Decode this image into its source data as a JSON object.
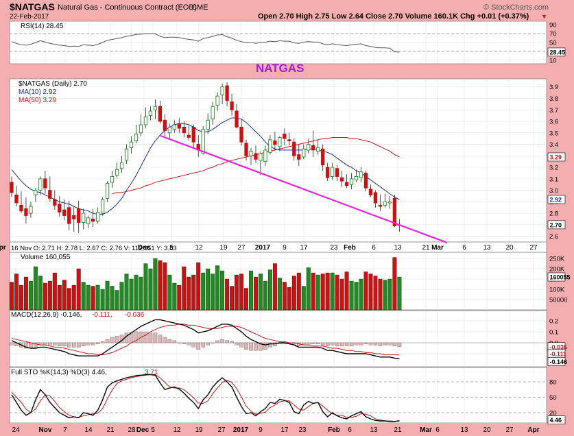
{
  "header": {
    "symbol": "$NATGAS",
    "description": "Natural Gas - Continuous Contract (EOD)",
    "exchange": "CME",
    "date": "22-Feb-2017",
    "quote": "Open 2.70  High 2.75  Low 2.64  Close 2.70  Volume 160.1K  Chg +0.01 (+0.37%)",
    "quote_arrow": "▼",
    "watermark": "© StockCharts.com",
    "annotation": "NATGAS"
  },
  "colors": {
    "up": "#1e8c1e",
    "down": "#cc1111",
    "ma10": "#1a2aa0",
    "ma50": "#c01818",
    "trendline": "#ee1ee0",
    "annotation": "#9d1fd6",
    "panel_bg": "#ffffff",
    "frame_bg": "#f4aeb0"
  },
  "info_row": "16 Nov O: 2.71  H: 2.78  L: 2.67  C: 2.76  V: 119,951  Y: 3.83",
  "x_axis": {
    "mid_labels": [
      "Dec",
      "5",
      "12",
      "19",
      "27",
      "2017",
      "9",
      "17",
      "23",
      "Feb",
      "6",
      "13",
      "21",
      "Mar",
      "6",
      "13",
      "20",
      "27",
      "Apr"
    ],
    "bottom_labels": [
      "24",
      "Nov",
      "7",
      "14",
      "21",
      "28",
      "Dec",
      "5",
      "12",
      "19",
      "27",
      "2017",
      "9",
      "17",
      "23",
      "Feb",
      "6",
      "13",
      "21",
      "Mar",
      "6",
      "13",
      "20",
      "27",
      "Apr"
    ]
  },
  "rsi": {
    "legend": "RSI(14) 28.45",
    "current": "28.45",
    "ticks": [
      "90",
      "70",
      "50",
      "30",
      "10"
    ]
  },
  "price_panel": {
    "legend_main": "$NATGAS (Daily) 2.70",
    "legend_ma10": "MA(10) 2.92",
    "legend_ma50": "MA(50) 3.29",
    "ticks": [
      "3.9",
      "3.8",
      "3.7",
      "3.6",
      "3.5",
      "3.4",
      "3.3",
      "3.2",
      "3.1",
      "3.0",
      "2.9",
      "2.8",
      "2.7",
      "2.6"
    ],
    "tag_ma50": "3.29",
    "tag_ma10": "2.92",
    "tag_close": "2.70"
  },
  "volume": {
    "legend": "Volume 160,055",
    "ticks": [
      "250K",
      "200K",
      "150K",
      "100K",
      "50000"
    ],
    "current": "160055"
  },
  "macd": {
    "legend_a": "MACD(12,26,9) -0.146,",
    "legend_b": "-0.111,",
    "legend_c": "-0.036",
    "ticks": [
      "0.2",
      "0.1",
      "0.0",
      "-0.1"
    ],
    "tags": [
      "-0.036",
      "-0.111",
      "-0.146"
    ]
  },
  "sto": {
    "legend_a": "Full STO %K(14,3) %D(3) 4.46,",
    "legend_b": "3.71",
    "ticks": [
      "80",
      "50",
      "20"
    ],
    "current": "4.46"
  },
  "chart_data": {
    "type": "candlestick",
    "title": "$NATGAS (Daily) 2.70",
    "xlabel": "",
    "ylabel": "",
    "ylim": [
      2.55,
      3.97
    ],
    "dates": [
      "2016-10-25",
      "2016-10-26",
      "2016-10-27",
      "2016-10-28",
      "2016-10-31",
      "2016-11-01",
      "2016-11-02",
      "2016-11-03",
      "2016-11-04",
      "2016-11-07",
      "2016-11-08",
      "2016-11-09",
      "2016-11-10",
      "2016-11-11",
      "2016-11-14",
      "2016-11-15",
      "2016-11-16",
      "2016-11-17",
      "2016-11-18",
      "2016-11-21",
      "2016-11-22",
      "2016-11-23",
      "2016-11-25",
      "2016-11-28",
      "2016-11-29",
      "2016-11-30",
      "2016-12-01",
      "2016-12-02",
      "2016-12-05",
      "2016-12-06",
      "2016-12-07",
      "2016-12-08",
      "2016-12-09",
      "2016-12-12",
      "2016-12-13",
      "2016-12-14",
      "2016-12-15",
      "2016-12-16",
      "2016-12-19",
      "2016-12-20",
      "2016-12-21",
      "2016-12-22",
      "2016-12-23",
      "2016-12-27",
      "2016-12-28",
      "2016-12-29",
      "2016-12-30",
      "2017-01-03",
      "2017-01-04",
      "2017-01-05",
      "2017-01-06",
      "2017-01-09",
      "2017-01-10",
      "2017-01-11",
      "2017-01-12",
      "2017-01-13",
      "2017-01-17",
      "2017-01-18",
      "2017-01-19",
      "2017-01-20",
      "2017-01-23",
      "2017-01-24",
      "2017-01-25",
      "2017-01-26",
      "2017-01-27",
      "2017-01-30",
      "2017-01-31",
      "2017-02-01",
      "2017-02-02",
      "2017-02-03",
      "2017-02-06",
      "2017-02-07",
      "2017-02-08",
      "2017-02-09",
      "2017-02-10",
      "2017-02-13",
      "2017-02-14",
      "2017-02-15",
      "2017-02-16",
      "2017-02-17",
      "2017-02-21",
      "2017-02-22"
    ],
    "open": [
      3.07,
      2.96,
      2.87,
      2.84,
      2.8,
      2.96,
      3.0,
      3.1,
      3.0,
      2.92,
      2.88,
      2.83,
      2.85,
      2.78,
      2.84,
      2.72,
      2.71,
      2.75,
      2.73,
      2.8,
      2.93,
      3.07,
      3.13,
      3.19,
      3.26,
      3.37,
      3.43,
      3.5,
      3.57,
      3.65,
      3.7,
      3.73,
      3.61,
      3.5,
      3.53,
      3.58,
      3.55,
      3.48,
      3.55,
      3.4,
      3.32,
      3.53,
      3.62,
      3.74,
      3.83,
      3.91,
      3.77,
      3.69,
      3.55,
      3.41,
      3.3,
      3.32,
      3.26,
      3.25,
      3.33,
      3.43,
      3.38,
      3.49,
      3.44,
      3.42,
      3.31,
      3.29,
      3.35,
      3.39,
      3.34,
      3.36,
      3.2,
      3.12,
      3.19,
      3.11,
      3.07,
      3.05,
      3.09,
      3.11,
      3.15,
      3.01,
      2.98,
      2.87,
      2.87,
      2.89,
      2.93,
      2.7
    ],
    "high": [
      3.12,
      3.04,
      2.99,
      2.94,
      2.9,
      3.02,
      3.12,
      3.17,
      3.12,
      3.0,
      2.95,
      2.92,
      2.91,
      2.86,
      2.91,
      2.84,
      2.78,
      2.84,
      2.85,
      2.94,
      3.08,
      3.17,
      3.24,
      3.3,
      3.4,
      3.47,
      3.57,
      3.66,
      3.72,
      3.73,
      3.79,
      3.78,
      3.66,
      3.58,
      3.61,
      3.63,
      3.6,
      3.56,
      3.57,
      3.48,
      3.56,
      3.67,
      3.77,
      3.85,
      3.93,
      3.94,
      3.84,
      3.75,
      3.62,
      3.44,
      3.37,
      3.39,
      3.34,
      3.39,
      3.48,
      3.51,
      3.47,
      3.54,
      3.5,
      3.45,
      3.4,
      3.4,
      3.45,
      3.52,
      3.44,
      3.4,
      3.24,
      3.24,
      3.22,
      3.17,
      3.14,
      3.15,
      3.18,
      3.2,
      3.17,
      3.05,
      3.0,
      2.96,
      2.97,
      2.95,
      2.96,
      2.75
    ],
    "low": [
      2.94,
      2.86,
      2.8,
      2.71,
      2.76,
      2.9,
      2.96,
      2.97,
      2.9,
      2.83,
      2.77,
      2.74,
      2.65,
      2.64,
      2.63,
      2.66,
      2.67,
      2.68,
      2.71,
      2.78,
      2.9,
      3.02,
      3.11,
      3.15,
      3.23,
      3.32,
      3.41,
      3.47,
      3.54,
      3.61,
      3.62,
      3.58,
      3.47,
      3.44,
      3.5,
      3.5,
      3.46,
      3.43,
      3.37,
      3.29,
      3.31,
      3.49,
      3.57,
      3.69,
      3.75,
      3.73,
      3.65,
      3.54,
      3.39,
      3.26,
      3.22,
      3.24,
      3.13,
      3.21,
      3.31,
      3.35,
      3.34,
      3.39,
      3.39,
      3.26,
      3.21,
      3.27,
      3.32,
      3.29,
      3.31,
      3.17,
      3.08,
      3.09,
      3.08,
      3.03,
      3.02,
      3.01,
      3.07,
      3.07,
      2.99,
      2.94,
      2.85,
      2.82,
      2.85,
      2.84,
      2.68,
      2.64
    ],
    "close": [
      2.98,
      2.89,
      2.82,
      2.78,
      2.86,
      3.0,
      3.1,
      3.02,
      2.93,
      2.87,
      2.81,
      2.78,
      2.71,
      2.75,
      2.72,
      2.8,
      2.76,
      2.73,
      2.81,
      2.92,
      3.06,
      3.12,
      3.18,
      3.24,
      3.36,
      3.42,
      3.49,
      3.57,
      3.64,
      3.69,
      3.73,
      3.6,
      3.52,
      3.55,
      3.57,
      3.54,
      3.5,
      3.46,
      3.42,
      3.35,
      3.53,
      3.61,
      3.73,
      3.82,
      3.9,
      3.78,
      3.7,
      3.55,
      3.42,
      3.3,
      3.34,
      3.27,
      3.32,
      3.35,
      3.44,
      3.4,
      3.46,
      3.45,
      3.43,
      3.3,
      3.27,
      3.36,
      3.4,
      3.35,
      3.37,
      3.22,
      3.11,
      3.2,
      3.12,
      3.08,
      3.04,
      3.1,
      3.12,
      3.16,
      3.02,
      2.96,
      2.89,
      2.86,
      2.9,
      2.9,
      2.69,
      2.7
    ],
    "ma10": [
      3.18,
      3.13,
      3.08,
      3.04,
      3.01,
      2.99,
      2.98,
      2.96,
      2.94,
      2.92,
      2.9,
      2.89,
      2.88,
      2.86,
      2.84,
      2.83,
      2.82,
      2.8,
      2.79,
      2.79,
      2.81,
      2.84,
      2.88,
      2.93,
      3.0,
      3.06,
      3.13,
      3.21,
      3.29,
      3.37,
      3.43,
      3.48,
      3.52,
      3.55,
      3.57,
      3.58,
      3.58,
      3.57,
      3.55,
      3.52,
      3.51,
      3.51,
      3.53,
      3.56,
      3.59,
      3.61,
      3.63,
      3.63,
      3.62,
      3.59,
      3.55,
      3.51,
      3.47,
      3.42,
      3.38,
      3.36,
      3.35,
      3.35,
      3.35,
      3.35,
      3.35,
      3.35,
      3.36,
      3.36,
      3.35,
      3.34,
      3.33,
      3.31,
      3.28,
      3.25,
      3.22,
      3.2,
      3.17,
      3.15,
      3.12,
      3.09,
      3.06,
      3.03,
      3.0,
      2.97,
      2.94,
      2.92
    ],
    "ma50": [
      null,
      null,
      null,
      null,
      null,
      null,
      null,
      null,
      null,
      null,
      null,
      null,
      null,
      null,
      null,
      null,
      null,
      null,
      null,
      null,
      null,
      2.97,
      2.98,
      2.98,
      2.99,
      3.0,
      3.01,
      3.02,
      3.04,
      3.05,
      3.07,
      3.08,
      3.09,
      3.1,
      3.11,
      3.12,
      3.13,
      3.14,
      3.15,
      3.16,
      3.17,
      3.19,
      3.2,
      3.22,
      3.23,
      3.25,
      3.26,
      3.27,
      3.28,
      3.29,
      3.3,
      3.31,
      3.32,
      3.33,
      3.34,
      3.35,
      3.36,
      3.37,
      3.38,
      3.39,
      3.4,
      3.41,
      3.42,
      3.43,
      3.44,
      3.45,
      3.45,
      3.46,
      3.46,
      3.46,
      3.46,
      3.45,
      3.45,
      3.44,
      3.43,
      3.42,
      3.4,
      3.38,
      3.36,
      3.34,
      3.31,
      3.29
    ],
    "volume": [
      135000,
      175000,
      120000,
      160000,
      140000,
      210000,
      165000,
      130000,
      140000,
      180000,
      120000,
      145000,
      105000,
      120000,
      200000,
      135000,
      119951,
      115000,
      120000,
      100000,
      140000,
      115000,
      95000,
      135000,
      175000,
      150000,
      170000,
      160000,
      225000,
      200000,
      250000,
      240000,
      230000,
      170000,
      130000,
      120000,
      210000,
      160000,
      170000,
      230000,
      180000,
      200000,
      175000,
      215000,
      190000,
      150000,
      115000,
      170000,
      175000,
      105000,
      190000,
      160000,
      175000,
      140000,
      195000,
      225000,
      155000,
      135000,
      110000,
      165000,
      180000,
      115000,
      205000,
      180000,
      170000,
      175000,
      180000,
      180000,
      170000,
      150000,
      185000,
      140000,
      135000,
      150000,
      185000,
      175000,
      165000,
      150000,
      145000,
      150000,
      255000,
      160055
    ],
    "rsi": [
      52,
      48,
      45,
      44,
      46,
      50,
      54,
      51,
      48,
      46,
      44,
      43,
      41,
      42,
      41,
      45,
      44,
      43,
      46,
      50,
      55,
      57,
      59,
      61,
      64,
      66,
      68,
      69,
      70,
      70,
      70,
      64,
      61,
      62,
      62,
      61,
      59,
      57,
      56,
      53,
      59,
      61,
      64,
      67,
      68,
      63,
      60,
      55,
      52,
      49,
      50,
      48,
      50,
      51,
      53,
      52,
      54,
      53,
      53,
      49,
      48,
      51,
      52,
      51,
      51,
      47,
      45,
      47,
      45,
      44,
      43,
      45,
      46,
      47,
      43,
      41,
      39,
      38,
      38,
      37,
      29,
      28.45
    ],
    "macd": [
      0.02,
      0.0,
      -0.02,
      -0.04,
      -0.05,
      -0.05,
      -0.04,
      -0.04,
      -0.05,
      -0.06,
      -0.07,
      -0.08,
      -0.1,
      -0.11,
      -0.12,
      -0.12,
      -0.12,
      -0.12,
      -0.12,
      -0.1,
      -0.07,
      -0.04,
      -0.01,
      0.02,
      0.06,
      0.09,
      0.12,
      0.15,
      0.17,
      0.19,
      0.21,
      0.21,
      0.2,
      0.19,
      0.18,
      0.17,
      0.16,
      0.14,
      0.12,
      0.09,
      0.1,
      0.11,
      0.13,
      0.15,
      0.17,
      0.17,
      0.16,
      0.13,
      0.1,
      0.06,
      0.03,
      0.01,
      -0.01,
      -0.02,
      -0.01,
      -0.01,
      0.0,
      0.0,
      -0.01,
      -0.02,
      -0.04,
      -0.04,
      -0.04,
      -0.04,
      -0.04,
      -0.05,
      -0.07,
      -0.07,
      -0.08,
      -0.09,
      -0.1,
      -0.1,
      -0.1,
      -0.1,
      -0.1,
      -0.11,
      -0.12,
      -0.13,
      -0.13,
      -0.13,
      -0.14,
      -0.146
    ],
    "macd_signal": [
      0.04,
      0.03,
      0.02,
      0.01,
      0.0,
      -0.01,
      -0.02,
      -0.02,
      -0.03,
      -0.04,
      -0.04,
      -0.05,
      -0.06,
      -0.07,
      -0.08,
      -0.09,
      -0.1,
      -0.1,
      -0.11,
      -0.11,
      -0.1,
      -0.09,
      -0.07,
      -0.05,
      -0.03,
      0.0,
      0.02,
      0.05,
      0.07,
      0.1,
      0.12,
      0.14,
      0.15,
      0.16,
      0.16,
      0.17,
      0.17,
      0.16,
      0.16,
      0.15,
      0.14,
      0.13,
      0.13,
      0.13,
      0.14,
      0.15,
      0.15,
      0.15,
      0.14,
      0.12,
      0.1,
      0.08,
      0.06,
      0.04,
      0.03,
      0.02,
      0.01,
      0.01,
      0.0,
      0.0,
      -0.01,
      -0.02,
      -0.02,
      -0.03,
      -0.03,
      -0.03,
      -0.04,
      -0.05,
      -0.05,
      -0.06,
      -0.07,
      -0.07,
      -0.08,
      -0.08,
      -0.09,
      -0.09,
      -0.1,
      -0.1,
      -0.11,
      -0.11,
      -0.11,
      -0.111
    ],
    "sto_k": [
      55,
      40,
      25,
      15,
      20,
      45,
      65,
      55,
      40,
      30,
      20,
      15,
      10,
      12,
      10,
      20,
      18,
      15,
      25,
      45,
      70,
      78,
      82,
      85,
      88,
      90,
      92,
      93,
      94,
      94,
      93,
      78,
      65,
      68,
      70,
      66,
      58,
      48,
      40,
      28,
      45,
      55,
      70,
      80,
      88,
      80,
      70,
      50,
      32,
      18,
      20,
      14,
      22,
      28,
      40,
      38,
      46,
      44,
      40,
      22,
      18,
      35,
      42,
      38,
      40,
      22,
      12,
      20,
      14,
      10,
      8,
      14,
      18,
      22,
      12,
      8,
      5,
      4,
      4,
      3,
      3,
      4.46
    ],
    "sto_d": [
      60,
      50,
      40,
      27,
      20,
      27,
      43,
      55,
      53,
      42,
      30,
      22,
      15,
      12,
      11,
      14,
      16,
      18,
      19,
      28,
      47,
      64,
      77,
      82,
      85,
      88,
      90,
      92,
      93,
      94,
      94,
      88,
      79,
      70,
      68,
      68,
      65,
      57,
      49,
      39,
      38,
      43,
      57,
      68,
      79,
      83,
      79,
      67,
      51,
      33,
      23,
      17,
      19,
      21,
      30,
      35,
      41,
      43,
      43,
      35,
      27,
      25,
      32,
      38,
      40,
      33,
      25,
      18,
      15,
      15,
      11,
      11,
      13,
      18,
      17,
      14,
      8,
      6,
      4,
      4,
      3.3,
      3.71
    ]
  }
}
